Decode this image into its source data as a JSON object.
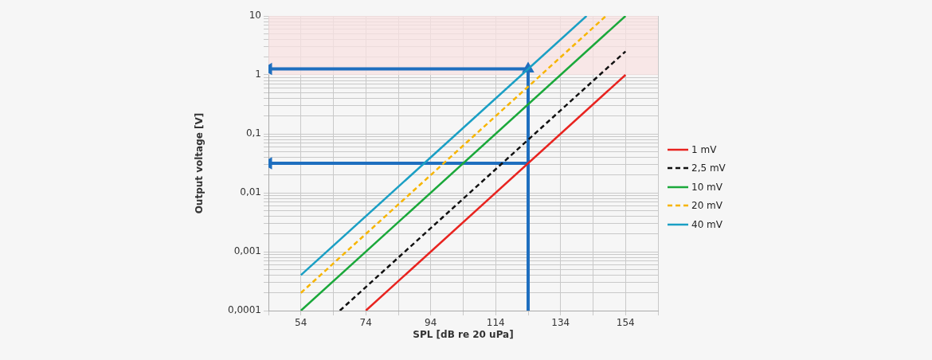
{
  "chart_data": {
    "type": "line",
    "xlabel": "SPL [dB re 20 uPa]",
    "ylabel": "Output voltage [V]",
    "log": "y",
    "grid": true,
    "legend": "right",
    "marker": "none",
    "xlim": [
      44,
      164
    ],
    "xticks": [
      {
        "value": 44,
        "label": null
      },
      54,
      {
        "value": 64,
        "label": null
      },
      74,
      {
        "value": 84,
        "label": null
      },
      94,
      {
        "value": 104,
        "label": null
      },
      114,
      {
        "value": 124,
        "label": null
      },
      134,
      {
        "value": 144,
        "label": null
      },
      154,
      {
        "value": 164,
        "label": null
      }
    ],
    "ylim": [
      0.0001,
      10
    ],
    "yticks": [
      {
        "value": 0.0001,
        "label": "0,0001"
      },
      {
        "value": 0.0002,
        "label": null
      },
      {
        "value": 0.0003,
        "label": null
      },
      {
        "value": 0.0004,
        "label": null
      },
      {
        "value": 0.0005,
        "label": null
      },
      {
        "value": 0.0006,
        "label": null
      },
      {
        "value": 0.0007,
        "label": null
      },
      {
        "value": 0.0008,
        "label": null
      },
      {
        "value": 0.0009,
        "label": null
      },
      {
        "value": 0.001,
        "label": "0,001"
      },
      {
        "value": 0.002,
        "label": null
      },
      {
        "value": 0.003,
        "label": null
      },
      {
        "value": 0.004,
        "label": null
      },
      {
        "value": 0.005,
        "label": null
      },
      {
        "value": 0.006,
        "label": null
      },
      {
        "value": 0.007,
        "label": null
      },
      {
        "value": 0.008,
        "label": null
      },
      {
        "value": 0.009,
        "label": null
      },
      {
        "value": 0.01,
        "label": "0,01"
      },
      {
        "value": 0.02,
        "label": null
      },
      {
        "value": 0.03,
        "label": null
      },
      {
        "value": 0.04,
        "label": null
      },
      {
        "value": 0.05,
        "label": null
      },
      {
        "value": 0.06,
        "label": null
      },
      {
        "value": 0.07,
        "label": null
      },
      {
        "value": 0.08,
        "label": null
      },
      {
        "value": 0.09,
        "label": null
      },
      {
        "value": 0.1,
        "label": "0,1"
      },
      {
        "value": 0.2,
        "label": null
      },
      {
        "value": 0.3,
        "label": null
      },
      {
        "value": 0.4,
        "label": null
      },
      {
        "value": 0.5,
        "label": null
      },
      {
        "value": 0.6,
        "label": null
      },
      {
        "value": 0.7,
        "label": null
      },
      {
        "value": 0.8,
        "label": null
      },
      {
        "value": 0.9,
        "label": null
      },
      {
        "value": 1,
        "label": "1"
      },
      {
        "value": 2,
        "label": null
      },
      {
        "value": 3,
        "label": null
      },
      {
        "value": 4,
        "label": null
      },
      {
        "value": 5,
        "label": null
      },
      {
        "value": 6,
        "label": null
      },
      {
        "value": 7,
        "label": null
      },
      {
        "value": 8,
        "label": null
      },
      {
        "value": 9,
        "label": null
      },
      {
        "value": 10,
        "label": "10"
      }
    ],
    "bands": [
      {
        "axis": "y",
        "from": 1,
        "to": 10,
        "color": "#f8e1e1"
      }
    ],
    "series": [
      {
        "name": "1 mV",
        "color": "#e8231f",
        "x": [
          74,
          154
        ],
        "values": [
          0.0001,
          1
        ],
        "line_style": "solid"
      },
      {
        "name": "2,5 mV",
        "color": "#111111",
        "x": [
          66,
          154
        ],
        "values": [
          0.0001,
          2.5
        ],
        "line_style": "dashed"
      },
      {
        "name": "10 mV",
        "color": "#1aa83a",
        "x": [
          54,
          154
        ],
        "values": [
          0.0001,
          10
        ],
        "line_style": "solid"
      },
      {
        "name": "20 mV",
        "color": "#f7b500",
        "x": [
          54,
          148
        ],
        "values": [
          0.0002,
          10
        ],
        "line_style": "dashed"
      },
      {
        "name": "40 mV",
        "color": "#1a9fc4",
        "x": [
          54,
          142
        ],
        "values": [
          0.0004,
          10
        ],
        "line_style": "solid"
      },
      {
        "color": "#1f6fbf",
        "x": [
          124,
          124
        ],
        "values": [
          0.0001,
          1.26
        ],
        "line_style": "solid",
        "marker": "triangle"
      },
      {
        "color": "#1f6fbf",
        "x": [
          124,
          44
        ],
        "values": [
          1.26,
          1.26
        ],
        "line_style": "solid",
        "marker": "triangle"
      },
      {
        "color": "#1f6fbf",
        "x": [
          124,
          44
        ],
        "values": [
          0.0316,
          0.0316
        ],
        "line_style": "solid",
        "marker": "triangle"
      }
    ]
  }
}
